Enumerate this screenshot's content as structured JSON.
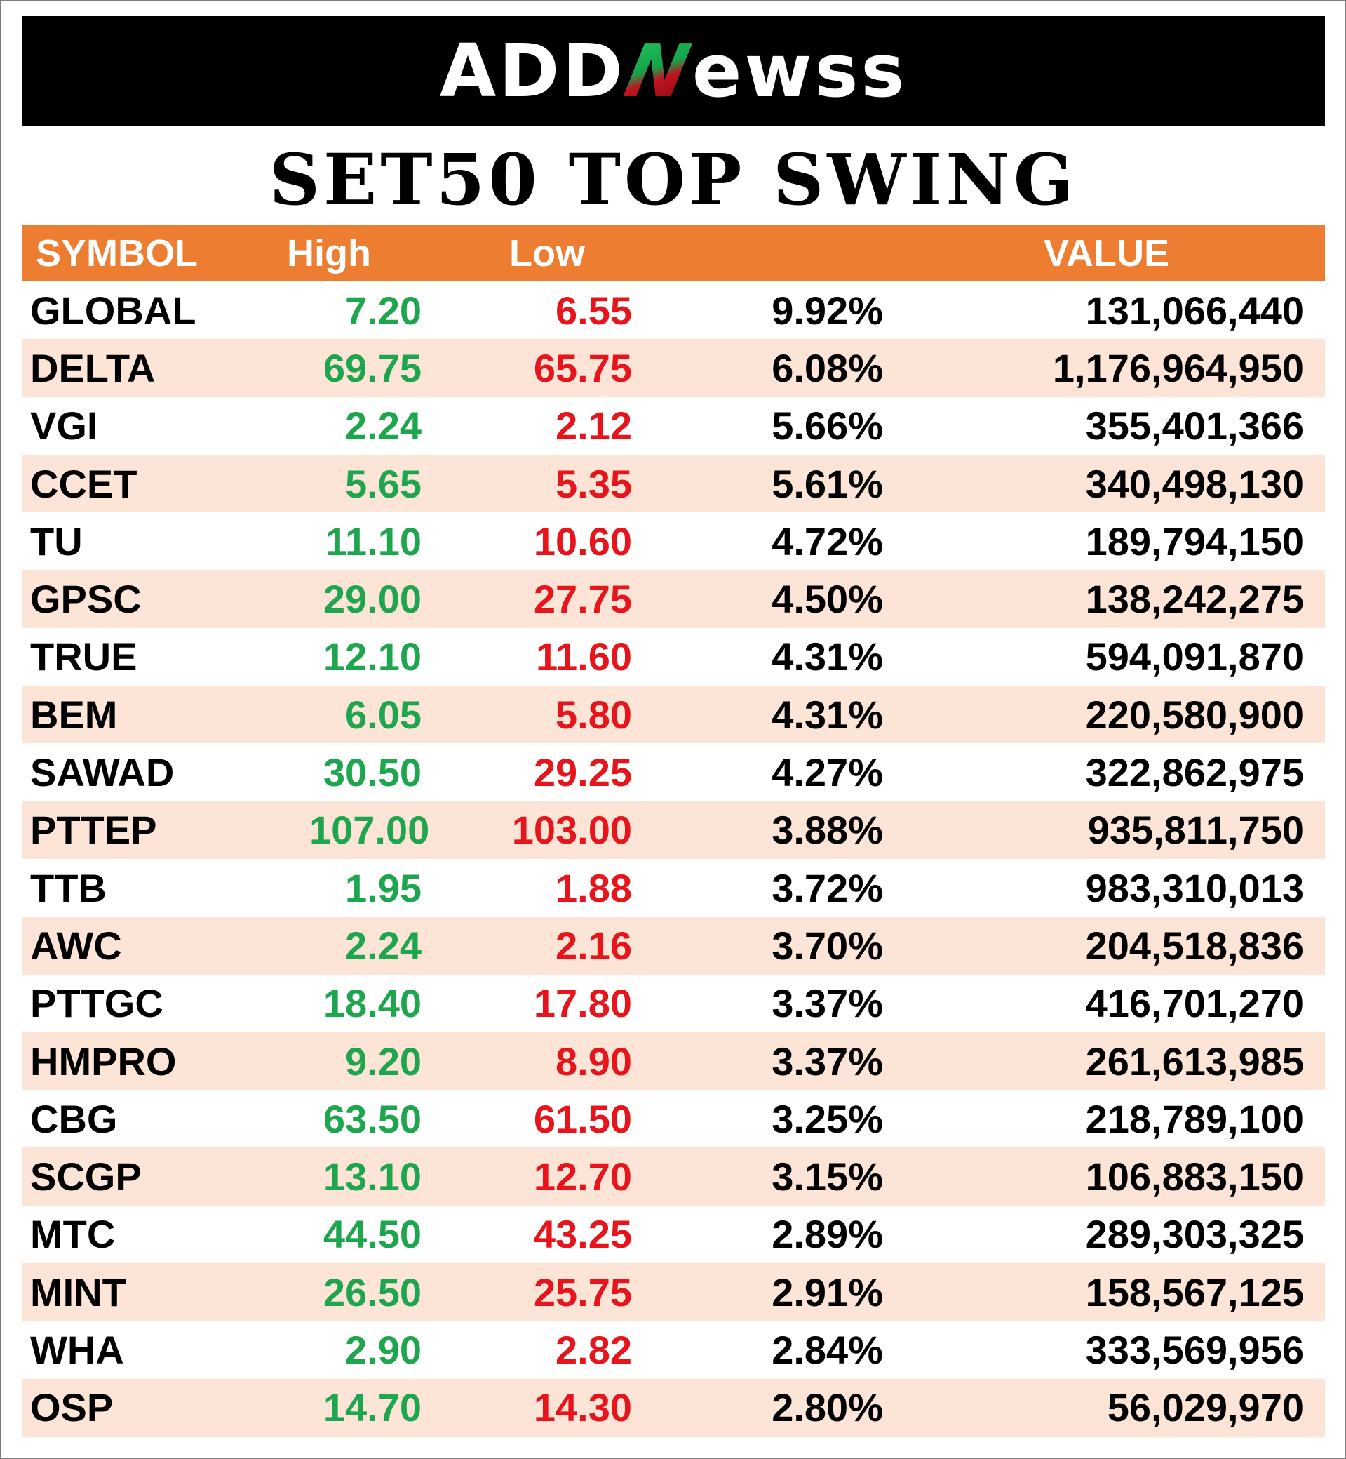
{
  "banner": {
    "logo_prefix": "ADD",
    "logo_n": "N",
    "logo_suffix": "ewss"
  },
  "title": "SET50 TOP SWING",
  "table": {
    "headers": {
      "symbol": "SYMBOL",
      "high": "High",
      "low": "Low",
      "change": "",
      "value": "VALUE"
    },
    "rows": [
      {
        "symbol": "GLOBAL",
        "high": "7.20",
        "low": "6.55",
        "change": "9.92%",
        "value": "131,066,440"
      },
      {
        "symbol": "DELTA",
        "high": "69.75",
        "low": "65.75",
        "change": "6.08%",
        "value": "1,176,964,950"
      },
      {
        "symbol": "VGI",
        "high": "2.24",
        "low": "2.12",
        "change": "5.66%",
        "value": "355,401,366"
      },
      {
        "symbol": "CCET",
        "high": "5.65",
        "low": "5.35",
        "change": "5.61%",
        "value": "340,498,130"
      },
      {
        "symbol": "TU",
        "high": "11.10",
        "low": "10.60",
        "change": "4.72%",
        "value": "189,794,150"
      },
      {
        "symbol": "GPSC",
        "high": "29.00",
        "low": "27.75",
        "change": "4.50%",
        "value": "138,242,275"
      },
      {
        "symbol": "TRUE",
        "high": "12.10",
        "low": "11.60",
        "change": "4.31%",
        "value": "594,091,870"
      },
      {
        "symbol": "BEM",
        "high": "6.05",
        "low": "5.80",
        "change": "4.31%",
        "value": "220,580,900"
      },
      {
        "symbol": "SAWAD",
        "high": "30.50",
        "low": "29.25",
        "change": "4.27%",
        "value": "322,862,975"
      },
      {
        "symbol": "PTTEP",
        "high": "107.00",
        "low": "103.00",
        "change": "3.88%",
        "value": "935,811,750"
      },
      {
        "symbol": "TTB",
        "high": "1.95",
        "low": "1.88",
        "change": "3.72%",
        "value": "983,310,013"
      },
      {
        "symbol": "AWC",
        "high": "2.24",
        "low": "2.16",
        "change": "3.70%",
        "value": "204,518,836"
      },
      {
        "symbol": "PTTGC",
        "high": "18.40",
        "low": "17.80",
        "change": "3.37%",
        "value": "416,701,270"
      },
      {
        "symbol": "HMPRO",
        "high": "9.20",
        "low": "8.90",
        "change": "3.37%",
        "value": "261,613,985"
      },
      {
        "symbol": "CBG",
        "high": "63.50",
        "low": "61.50",
        "change": "3.25%",
        "value": "218,789,100"
      },
      {
        "symbol": "SCGP",
        "high": "13.10",
        "low": "12.70",
        "change": "3.15%",
        "value": "106,883,150"
      },
      {
        "symbol": "MTC",
        "high": "44.50",
        "low": "43.25",
        "change": "2.89%",
        "value": "289,303,325"
      },
      {
        "symbol": "MINT",
        "high": "26.50",
        "low": "25.75",
        "change": "2.91%",
        "value": "158,567,125"
      },
      {
        "symbol": "WHA",
        "high": "2.90",
        "low": "2.82",
        "change": "2.84%",
        "value": "333,569,956"
      },
      {
        "symbol": "OSP",
        "high": "14.70",
        "low": "14.30",
        "change": "2.80%",
        "value": "56,029,970"
      }
    ]
  },
  "colors": {
    "header_bg": "#ed7d31",
    "alt_row_bg": "#fce4d6",
    "high_text": "#1ea64f",
    "low_text": "#e8141c",
    "banner_bg": "#000000"
  }
}
